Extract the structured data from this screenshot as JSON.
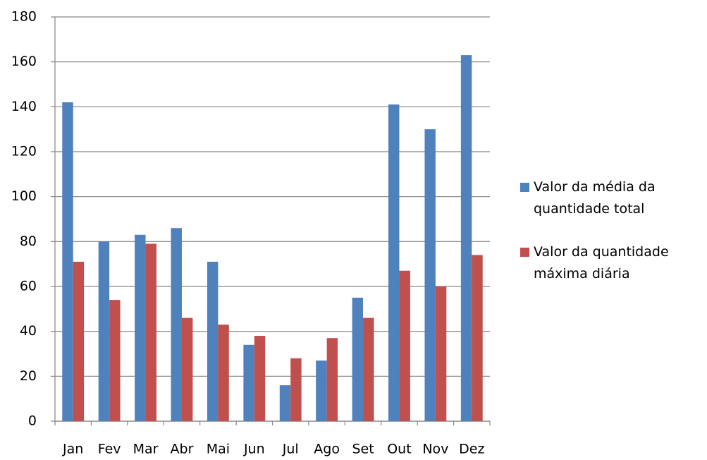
{
  "chart_data": {
    "type": "bar",
    "categories": [
      "Jan",
      "Fev",
      "Mar",
      "Abr",
      "Mai",
      "Jun",
      "Jul",
      "Ago",
      "Set",
      "Out",
      "Nov",
      "Dez"
    ],
    "series": [
      {
        "name": "Valor da média da quantidade total",
        "color": "#4f81bd",
        "values": [
          142,
          80,
          83,
          86,
          71,
          34,
          16,
          27,
          55,
          141,
          130,
          163
        ]
      },
      {
        "name": "Valor da quantidade máxima diária",
        "color": "#c0504d",
        "values": [
          71,
          54,
          79,
          46,
          43,
          38,
          28,
          37,
          46,
          67,
          60,
          74
        ]
      }
    ],
    "ylim": [
      0,
      180
    ],
    "yticks": [
      0,
      20,
      40,
      60,
      80,
      100,
      120,
      140,
      160,
      180
    ],
    "grid": true,
    "legend": "right"
  }
}
